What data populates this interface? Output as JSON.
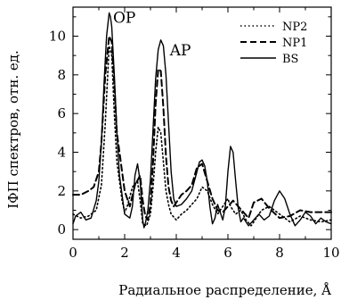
{
  "chart_data": {
    "type": "line",
    "title": "",
    "xlabel": "Радиальное распределение, Å",
    "ylabel": "IФП спектров, отн. ед.",
    "xlim": [
      0,
      10
    ],
    "ylim": [
      -0.5,
      11.5
    ],
    "xticks": [
      0,
      2,
      4,
      6,
      8,
      10
    ],
    "yticks": [
      0,
      2,
      4,
      6,
      8,
      10
    ],
    "grid": false,
    "legend_position": "top-right",
    "annotations": [
      {
        "text": "OP",
        "x": 1.55,
        "y": 10.7
      },
      {
        "text": "AP",
        "x": 3.75,
        "y": 9.0
      }
    ],
    "series": [
      {
        "name": "NP2",
        "style": "dotted",
        "x": [
          0,
          0.3,
          0.6,
          0.9,
          1.1,
          1.25,
          1.4,
          1.5,
          1.6,
          1.7,
          1.9,
          2.0,
          2.1,
          2.3,
          2.5,
          2.6,
          2.7,
          2.85,
          3.0,
          3.1,
          3.2,
          3.3,
          3.4,
          3.5,
          3.6,
          3.7,
          3.8,
          4.0,
          4.2,
          4.4,
          4.6,
          4.8,
          5.0,
          5.2,
          5.4,
          5.6,
          5.8,
          6.0,
          6.1,
          6.3,
          6.5,
          6.7,
          6.9,
          7.1,
          7.3,
          7.6,
          8.0,
          8.4,
          8.8,
          9.2,
          9.6,
          10.0
        ],
        "values": [
          0.8,
          0.6,
          0.7,
          1.0,
          2.3,
          5.5,
          9.5,
          9.0,
          6.0,
          3.5,
          1.5,
          0.9,
          1.2,
          2.2,
          2.5,
          1.5,
          0.3,
          0.2,
          0.8,
          2.2,
          4.0,
          5.3,
          5.0,
          3.5,
          2.0,
          1.3,
          0.8,
          0.5,
          0.8,
          1.0,
          1.3,
          1.6,
          2.2,
          2.0,
          1.3,
          0.8,
          1.2,
          1.6,
          1.2,
          0.8,
          1.0,
          0.5,
          0.2,
          0.6,
          1.0,
          1.2,
          0.8,
          0.4,
          0.7,
          0.5,
          0.4,
          0.5
        ]
      },
      {
        "name": "NP1",
        "style": "dashed",
        "x": [
          0,
          0.3,
          0.6,
          0.8,
          1.0,
          1.1,
          1.25,
          1.4,
          1.5,
          1.6,
          1.7,
          1.9,
          2.0,
          2.2,
          2.4,
          2.6,
          2.7,
          2.8,
          2.9,
          3.0,
          3.1,
          3.2,
          3.3,
          3.4,
          3.5,
          3.6,
          3.7,
          3.8,
          3.9,
          4.0,
          4.2,
          4.4,
          4.6,
          4.8,
          5.0,
          5.2,
          5.4,
          5.6,
          5.8,
          6.0,
          6.2,
          6.4,
          6.6,
          6.8,
          7.0,
          7.3,
          7.6,
          8.0,
          8.4,
          8.8,
          9.2,
          9.6,
          10.0
        ],
        "values": [
          1.8,
          1.8,
          2.0,
          2.2,
          3.0,
          4.5,
          8.0,
          10.0,
          9.7,
          7.5,
          5.0,
          3.0,
          2.0,
          1.2,
          2.3,
          2.8,
          1.5,
          0.7,
          0.5,
          1.3,
          3.5,
          6.5,
          8.3,
          8.2,
          6.3,
          3.8,
          2.2,
          1.5,
          1.2,
          1.4,
          1.8,
          2.0,
          2.3,
          3.2,
          3.4,
          2.5,
          1.6,
          1.0,
          0.9,
          1.2,
          1.5,
          1.2,
          0.9,
          0.6,
          1.4,
          1.6,
          1.1,
          0.6,
          0.7,
          1.0,
          0.9,
          0.9,
          0.9
        ]
      },
      {
        "name": "BS",
        "style": "solid",
        "x": [
          0,
          0.1,
          0.3,
          0.5,
          0.7,
          0.9,
          1.0,
          1.1,
          1.2,
          1.3,
          1.4,
          1.45,
          1.5,
          1.6,
          1.7,
          1.8,
          2.0,
          2.2,
          2.3,
          2.4,
          2.5,
          2.6,
          2.7,
          2.75,
          2.8,
          2.9,
          3.0,
          3.1,
          3.2,
          3.3,
          3.4,
          3.5,
          3.6,
          3.7,
          3.8,
          3.9,
          4.0,
          4.2,
          4.4,
          4.6,
          4.8,
          4.9,
          5.0,
          5.1,
          5.2,
          5.3,
          5.4,
          5.5,
          5.6,
          5.7,
          5.8,
          5.9,
          6.0,
          6.1,
          6.2,
          6.3,
          6.4,
          6.5,
          6.6,
          6.8,
          7.0,
          7.2,
          7.4,
          7.6,
          7.8,
          8.0,
          8.2,
          8.4,
          8.6,
          8.8,
          9.0,
          9.2,
          9.4,
          9.6,
          9.8,
          10.0
        ],
        "values": [
          0.3,
          0.7,
          0.9,
          0.5,
          0.6,
          1.5,
          2.5,
          4.5,
          7.5,
          10.0,
          11.2,
          11.0,
          10.5,
          8.0,
          5.0,
          2.8,
          0.8,
          0.6,
          1.2,
          2.8,
          3.4,
          2.5,
          0.5,
          0.1,
          0.3,
          1.0,
          2.6,
          5.2,
          7.8,
          9.3,
          9.8,
          9.5,
          8.0,
          5.5,
          3.0,
          1.6,
          1.2,
          1.3,
          1.6,
          2.0,
          3.0,
          3.5,
          3.6,
          3.3,
          2.5,
          1.2,
          0.3,
          0.6,
          1.3,
          0.9,
          0.5,
          1.2,
          3.0,
          4.3,
          4.0,
          2.5,
          1.1,
          0.4,
          0.6,
          0.2,
          0.5,
          0.8,
          0.5,
          0.7,
          1.5,
          2.0,
          1.6,
          0.8,
          0.2,
          0.5,
          0.9,
          0.7,
          0.3,
          0.6,
          0.4,
          0.3
        ]
      }
    ]
  }
}
